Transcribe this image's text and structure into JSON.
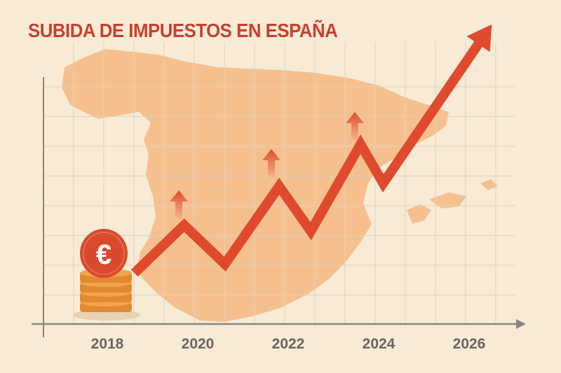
{
  "chart_data": {
    "type": "line",
    "title": "SUBIDA DE IMPUESTOS EN ESPAÑA",
    "xlabel": "",
    "ylabel": "",
    "x_ticks": [
      "2018",
      "2020",
      "2022",
      "2024",
      "2026"
    ],
    "xlim": [
      2016.6,
      2027.2
    ],
    "ylim": [
      0,
      100
    ],
    "y_axis_labeled": false,
    "grid": true,
    "series": [
      {
        "x": [
          2018.6,
          2019.7,
          2020.6,
          2021.8,
          2022.5,
          2023.6,
          2024.1,
          2026.5
        ],
        "y": [
          17,
          33,
          20,
          46,
          31,
          60,
          47,
          100
        ],
        "color": "#e04a2c",
        "end_marker": "arrow"
      }
    ],
    "background_illustration": "map-of-spain",
    "colors": {
      "title": "#c8402e",
      "line": "#e04a2c",
      "map": "#f6c08e",
      "background": "#f8ebd6",
      "axis": "#8a8580"
    },
    "decorations": [
      "euro-coin-icon",
      "coin-stack-icon",
      "up-arrow-icon"
    ]
  }
}
